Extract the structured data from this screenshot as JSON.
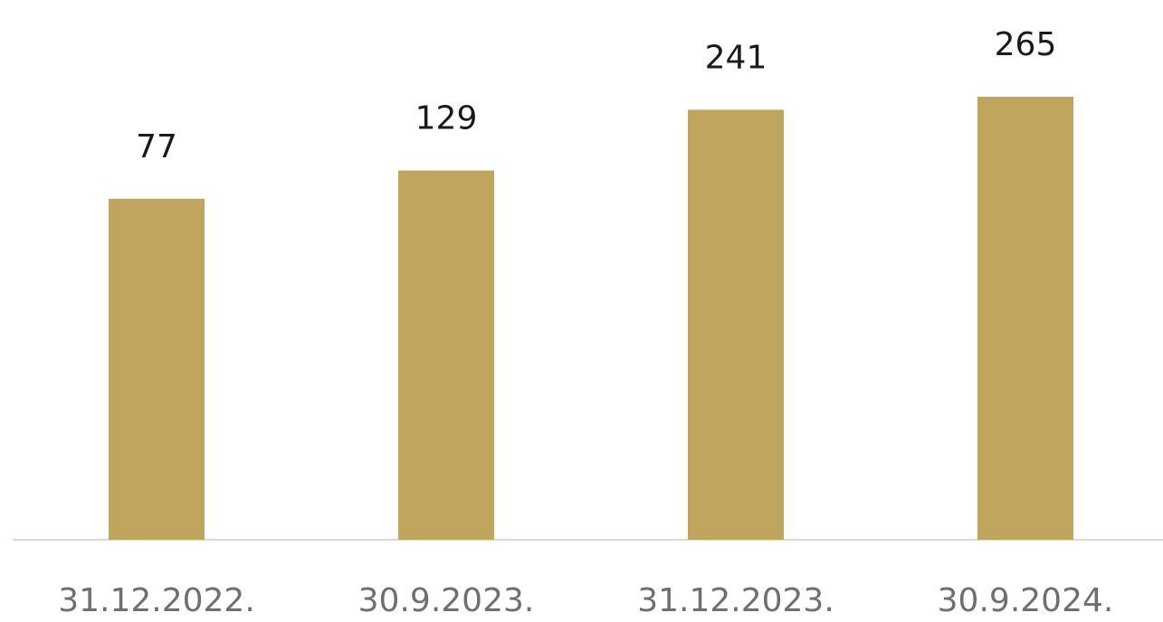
{
  "chart_data": {
    "type": "bar",
    "categories": [
      "31.12.2022.",
      "30.9.2023.",
      "31.12.2023.",
      "30.9.2024."
    ],
    "series": [
      {
        "values": [
          77,
          129,
          241,
          265
        ],
        "color": "#c0a55e"
      }
    ],
    "data_labels": [
      "77",
      "129",
      "241",
      "265"
    ],
    "title": "",
    "xlabel": "",
    "ylabel": "",
    "grid": false,
    "legend": "none",
    "colors": {
      "bar": "#c0a55e",
      "axis": "#d9d9d9",
      "value_text": "#1a1a1a",
      "tick_text": "#6f6f6f"
    }
  }
}
